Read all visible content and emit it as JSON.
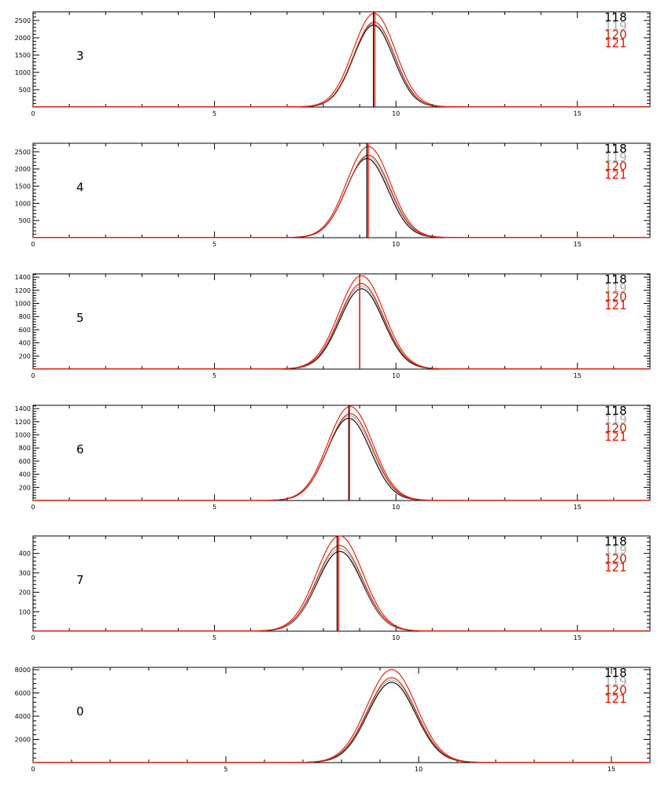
{
  "legend": [
    {
      "name": "118",
      "color": "#000000"
    },
    {
      "name": "119",
      "color": "#aaaaaa"
    },
    {
      "name": "120",
      "color": "#bb2200"
    },
    {
      "name": "121",
      "color": "#ee1100"
    }
  ],
  "chart_data": [
    {
      "type": "line",
      "panel_label": "3",
      "xlim": [
        0,
        17
      ],
      "ylim": [
        0,
        2750
      ],
      "x_ticks": [
        0,
        5,
        10,
        15
      ],
      "y_ticks": [
        500,
        1000,
        1500,
        2000,
        2500
      ],
      "series": [
        {
          "name": "118",
          "peak_x": 9.38,
          "peak_y": 2360,
          "sigma": 0.55
        },
        {
          "name": "119",
          "peak_x": 9.38,
          "peak_y": 2400,
          "sigma": 0.56
        },
        {
          "name": "120",
          "peak_x": 9.4,
          "peak_y": 2450,
          "sigma": 0.56
        },
        {
          "name": "121",
          "peak_x": 9.4,
          "peak_y": 2700,
          "sigma": 0.58
        }
      ],
      "markers": [
        {
          "x": 9.38,
          "color": "#000000"
        },
        {
          "x": 9.42,
          "color": "#ee1100"
        }
      ]
    },
    {
      "type": "line",
      "panel_label": "4",
      "xlim": [
        0,
        17
      ],
      "ylim": [
        0,
        2750
      ],
      "x_ticks": [
        0,
        5,
        10,
        15
      ],
      "y_ticks": [
        500,
        1000,
        1500,
        2000,
        2500
      ],
      "series": [
        {
          "name": "118",
          "peak_x": 9.2,
          "peak_y": 2300,
          "sigma": 0.58
        },
        {
          "name": "119",
          "peak_x": 9.22,
          "peak_y": 2350,
          "sigma": 0.59
        },
        {
          "name": "120",
          "peak_x": 9.24,
          "peak_y": 2400,
          "sigma": 0.59
        },
        {
          "name": "121",
          "peak_x": 9.24,
          "peak_y": 2650,
          "sigma": 0.6
        }
      ],
      "markers": [
        {
          "x": 9.2,
          "color": "#000000"
        },
        {
          "x": 9.24,
          "color": "#ee1100"
        }
      ]
    },
    {
      "type": "line",
      "panel_label": "5",
      "xlim": [
        0,
        17
      ],
      "ylim": [
        0,
        1450
      ],
      "x_ticks": [
        0,
        5,
        10,
        15
      ],
      "y_ticks": [
        200,
        400,
        600,
        800,
        1000,
        1200,
        1400
      ],
      "series": [
        {
          "name": "118",
          "peak_x": 9.05,
          "peak_y": 1220,
          "sigma": 0.6
        },
        {
          "name": "119",
          "peak_x": 9.05,
          "peak_y": 1260,
          "sigma": 0.61
        },
        {
          "name": "120",
          "peak_x": 9.05,
          "peak_y": 1300,
          "sigma": 0.61
        },
        {
          "name": "121",
          "peak_x": 9.05,
          "peak_y": 1420,
          "sigma": 0.62
        }
      ],
      "markers": [
        {
          "x": 9.0,
          "color": "#000000"
        },
        {
          "x": 9.0,
          "color": "#ee1100"
        }
      ]
    },
    {
      "type": "line",
      "panel_label": "6",
      "xlim": [
        0,
        17
      ],
      "ylim": [
        0,
        1450
      ],
      "x_ticks": [
        0,
        5,
        10,
        15
      ],
      "y_ticks": [
        200,
        400,
        600,
        800,
        1000,
        1200,
        1400
      ],
      "series": [
        {
          "name": "118",
          "peak_x": 8.7,
          "peak_y": 1250,
          "sigma": 0.6
        },
        {
          "name": "119",
          "peak_x": 8.72,
          "peak_y": 1290,
          "sigma": 0.61
        },
        {
          "name": "120",
          "peak_x": 8.74,
          "peak_y": 1320,
          "sigma": 0.61
        },
        {
          "name": "121",
          "peak_x": 8.74,
          "peak_y": 1430,
          "sigma": 0.62
        }
      ],
      "markers": [
        {
          "x": 8.7,
          "color": "#000000"
        },
        {
          "x": 8.72,
          "color": "#ee1100"
        }
      ]
    },
    {
      "type": "line",
      "panel_label": "7",
      "xlim": [
        0,
        17
      ],
      "ylim": [
        0,
        490
      ],
      "x_ticks": [
        0,
        5,
        10,
        15
      ],
      "y_ticks": [
        100,
        200,
        300,
        400
      ],
      "series": [
        {
          "name": "118",
          "peak_x": 8.45,
          "peak_y": 410,
          "sigma": 0.62
        },
        {
          "name": "119",
          "peak_x": 8.45,
          "peak_y": 425,
          "sigma": 0.62
        },
        {
          "name": "120",
          "peak_x": 8.45,
          "peak_y": 440,
          "sigma": 0.63
        },
        {
          "name": "121",
          "peak_x": 8.45,
          "peak_y": 490,
          "sigma": 0.64
        }
      ],
      "markers": [
        {
          "x": 8.38,
          "color": "#000000"
        },
        {
          "x": 8.42,
          "color": "#ee1100"
        }
      ]
    },
    {
      "type": "line",
      "panel_label": "0",
      "xlim": [
        0,
        16
      ],
      "ylim": [
        0,
        8200
      ],
      "x_ticks": [
        0,
        5,
        10,
        15
      ],
      "y_ticks": [
        2000,
        4000,
        6000,
        8000
      ],
      "series": [
        {
          "name": "118",
          "peak_x": 9.3,
          "peak_y": 6900,
          "sigma": 0.62
        },
        {
          "name": "119",
          "peak_x": 9.3,
          "peak_y": 7100,
          "sigma": 0.63
        },
        {
          "name": "120",
          "peak_x": 9.3,
          "peak_y": 7300,
          "sigma": 0.63
        },
        {
          "name": "121",
          "peak_x": 9.3,
          "peak_y": 8000,
          "sigma": 0.64
        }
      ],
      "markers": []
    }
  ]
}
